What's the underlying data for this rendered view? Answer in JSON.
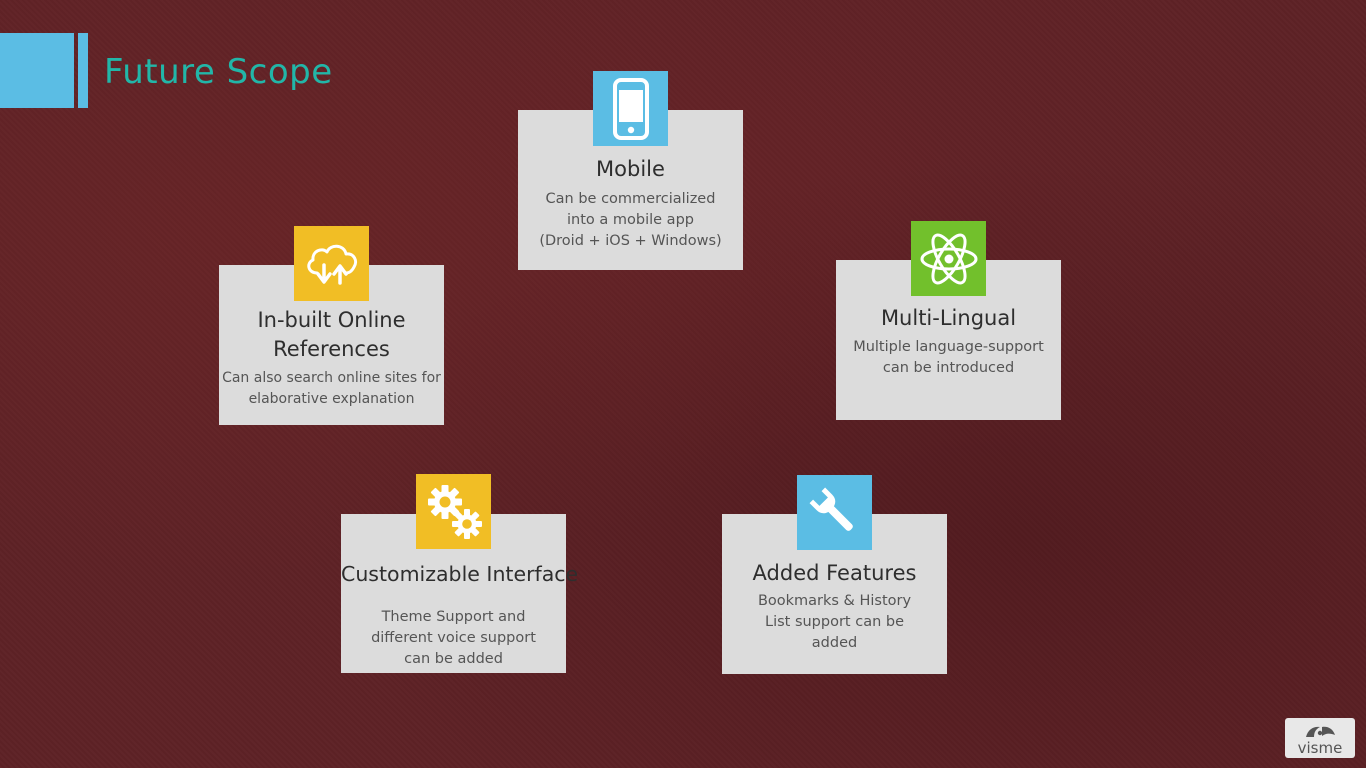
{
  "page": {
    "title": "Future Scope"
  },
  "colors": {
    "accent_blue": "#5bbde4",
    "accent_yellow": "#f1be25",
    "accent_green": "#72c02c",
    "title_teal": "#22b6a8",
    "background": "#5e2226",
    "card_bg": "#dcdcdc"
  },
  "cards": {
    "mobile": {
      "icon": "mobile-phone-icon",
      "title": "Mobile",
      "description": "Can be commercialized\ninto a mobile app\n(Droid + iOS + Windows)"
    },
    "references": {
      "icon": "cloud-sync-icon",
      "title": "In-built Online\nReferences",
      "description": "Can also search online sites for\nelaborative explanation"
    },
    "multilingual": {
      "icon": "atom-icon",
      "title": "Multi-Lingual",
      "description": "Multiple language-support\ncan be introduced"
    },
    "customizable": {
      "icon": "gears-icon",
      "title": "Customizable Interface",
      "description": "Theme Support and\ndifferent voice support\ncan be added"
    },
    "features": {
      "icon": "wrench-icon",
      "title": "Added Features",
      "description": "Bookmarks & History\nList support can be\nadded"
    }
  },
  "logo": {
    "text": "visme"
  }
}
